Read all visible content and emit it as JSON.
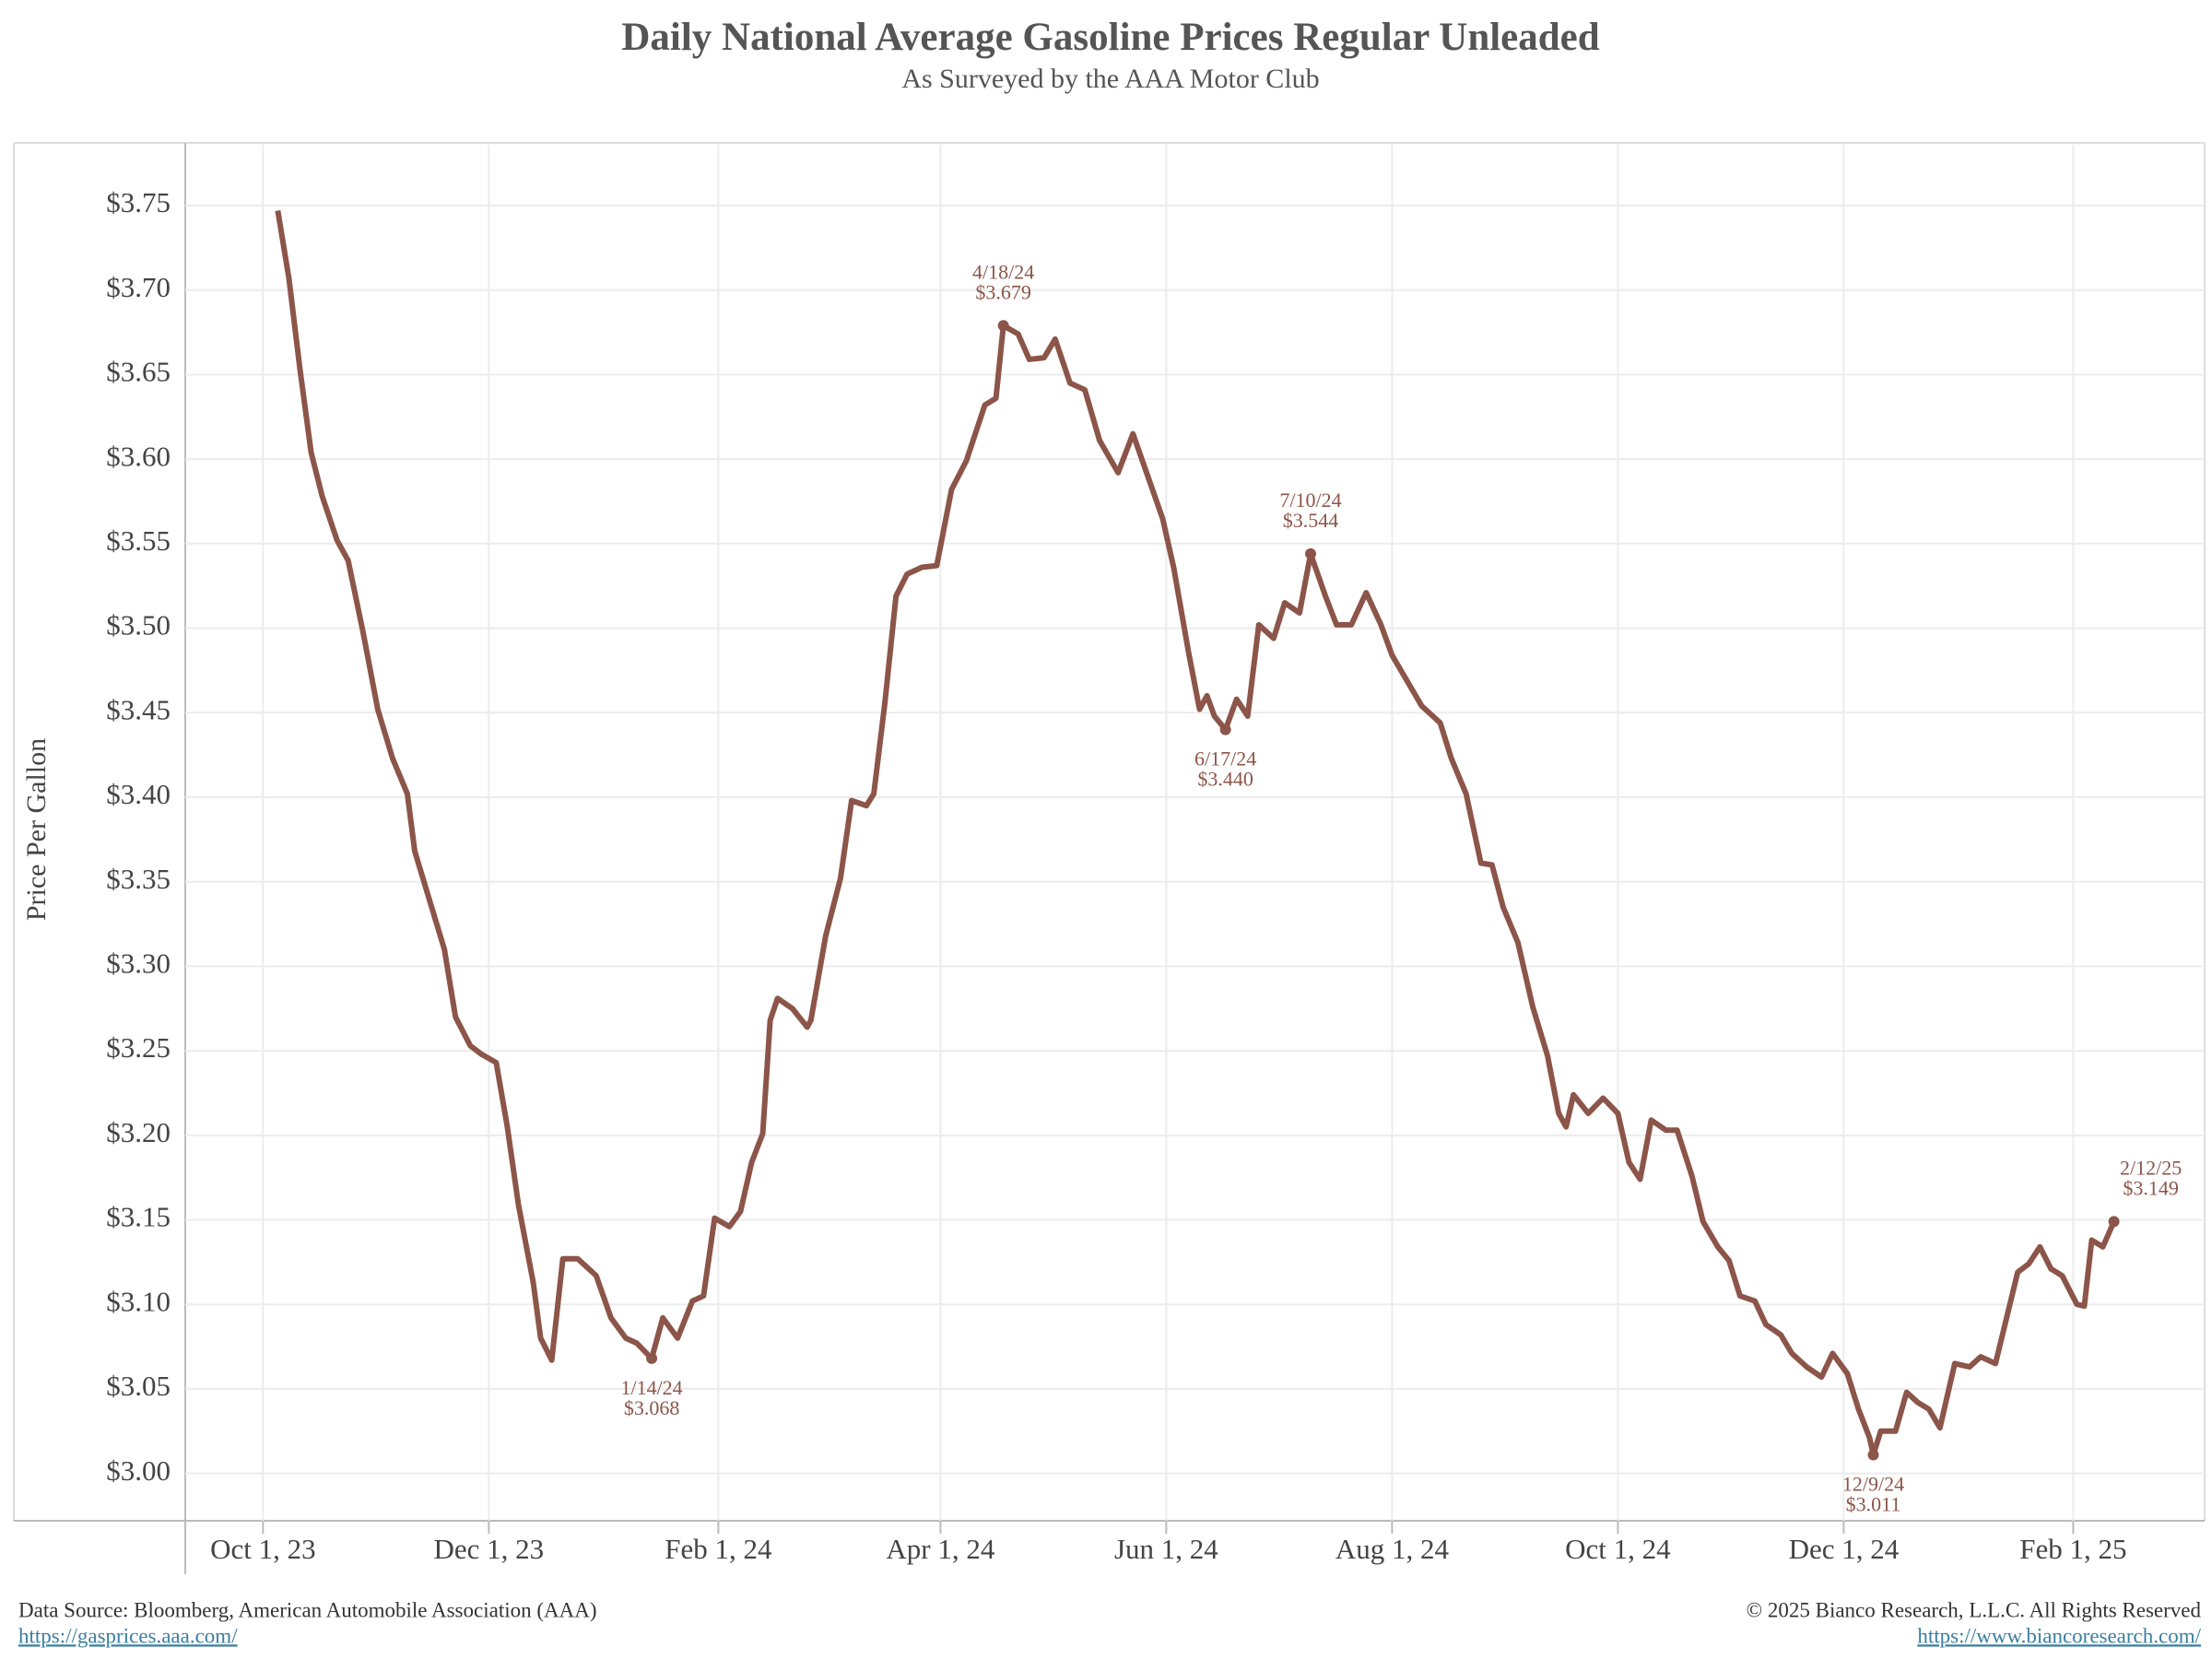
{
  "chart_data": {
    "type": "line",
    "title": "Daily National Average Gasoline Prices Regular Unleaded",
    "subtitle": "As Surveyed by the AAA Motor Club",
    "y_label": "Price Per Gallon",
    "source": "Data Source: Bloomberg, American Automobile Association (AAA)",
    "source_link": "https://gasprices.aaa.com/",
    "copyright": "© 2025 Bianco Research, L.L.C. All Rights Reserved",
    "copyright_link": "https://www.biancoresearch.com/",
    "grid": true,
    "xlim": [
      "2023-09-10",
      "2025-03-08"
    ],
    "xticks": [
      {
        "value": "2023-10-01",
        "label": "Oct 1, 23"
      },
      {
        "value": "2023-12-01",
        "label": "Dec 1, 23"
      },
      {
        "value": "2024-02-01",
        "label": "Feb 1, 24"
      },
      {
        "value": "2024-04-01",
        "label": "Apr 1, 24"
      },
      {
        "value": "2024-06-01",
        "label": "Jun 1, 24"
      },
      {
        "value": "2024-08-01",
        "label": "Aug 1, 24"
      },
      {
        "value": "2024-10-01",
        "label": "Oct 1, 24"
      },
      {
        "value": "2024-12-01",
        "label": "Dec 1, 24"
      },
      {
        "value": "2025-02-01",
        "label": "Feb 1, 25"
      }
    ],
    "ylim": [
      2.972,
      3.786
    ],
    "yticks": [
      {
        "value": 3.0,
        "label": "$3.00"
      },
      {
        "value": 3.05,
        "label": "$3.05"
      },
      {
        "value": 3.1,
        "label": "$3.10"
      },
      {
        "value": 3.15,
        "label": "$3.15"
      },
      {
        "value": 3.2,
        "label": "$3.20"
      },
      {
        "value": 3.25,
        "label": "$3.25"
      },
      {
        "value": 3.3,
        "label": "$3.30"
      },
      {
        "value": 3.35,
        "label": "$3.35"
      },
      {
        "value": 3.4,
        "label": "$3.40"
      },
      {
        "value": 3.45,
        "label": "$3.45"
      },
      {
        "value": 3.5,
        "label": "$3.50"
      },
      {
        "value": 3.55,
        "label": "$3.55"
      },
      {
        "value": 3.6,
        "label": "$3.60"
      },
      {
        "value": 3.65,
        "label": "$3.65"
      },
      {
        "value": 3.7,
        "label": "$3.70"
      },
      {
        "value": 3.75,
        "label": "$3.75"
      }
    ],
    "x": [
      "2023-10-05",
      "2023-10-08",
      "2023-10-11",
      "2023-10-14",
      "2023-10-17",
      "2023-10-21",
      "2023-10-24",
      "2023-10-28",
      "2023-11-01",
      "2023-11-05",
      "2023-11-09",
      "2023-11-11",
      "2023-11-15",
      "2023-11-19",
      "2023-11-22",
      "2023-11-26",
      "2023-11-29",
      "2023-12-03",
      "2023-12-06",
      "2023-12-09",
      "2023-12-13",
      "2023-12-15",
      "2023-12-18",
      "2023-12-21",
      "2023-12-25",
      "2023-12-30",
      "2024-01-03",
      "2024-01-07",
      "2024-01-10",
      "2024-01-14",
      "2024-01-17",
      "2024-01-21",
      "2024-01-25",
      "2024-01-28",
      "2024-01-31",
      "2024-02-04",
      "2024-02-07",
      "2024-02-10",
      "2024-02-13",
      "2024-02-15",
      "2024-02-17",
      "2024-02-21",
      "2024-02-25",
      "2024-02-26",
      "2024-03-01",
      "2024-03-05",
      "2024-03-08",
      "2024-03-12",
      "2024-03-14",
      "2024-03-17",
      "2024-03-20",
      "2024-03-23",
      "2024-03-27",
      "2024-03-31",
      "2024-04-04",
      "2024-04-08",
      "2024-04-13",
      "2024-04-16",
      "2024-04-18",
      "2024-04-22",
      "2024-04-25",
      "2024-04-29",
      "2024-05-02",
      "2024-05-06",
      "2024-05-10",
      "2024-05-14",
      "2024-05-19",
      "2024-05-23",
      "2024-05-27",
      "2024-05-31",
      "2024-06-03",
      "2024-06-07",
      "2024-06-10",
      "2024-06-12",
      "2024-06-14",
      "2024-06-17",
      "2024-06-20",
      "2024-06-23",
      "2024-06-26",
      "2024-06-30",
      "2024-07-03",
      "2024-07-07",
      "2024-07-10",
      "2024-07-14",
      "2024-07-17",
      "2024-07-21",
      "2024-07-25",
      "2024-07-29",
      "2024-08-01",
      "2024-08-05",
      "2024-08-09",
      "2024-08-14",
      "2024-08-17",
      "2024-08-21",
      "2024-08-25",
      "2024-08-28",
      "2024-08-31",
      "2024-09-04",
      "2024-09-08",
      "2024-09-12",
      "2024-09-15",
      "2024-09-17",
      "2024-09-19",
      "2024-09-23",
      "2024-09-27",
      "2024-10-01",
      "2024-10-04",
      "2024-10-07",
      "2024-10-10",
      "2024-10-14",
      "2024-10-17",
      "2024-10-21",
      "2024-10-24",
      "2024-10-28",
      "2024-10-31",
      "2024-11-03",
      "2024-11-07",
      "2024-11-10",
      "2024-11-14",
      "2024-11-17",
      "2024-11-21",
      "2024-11-25",
      "2024-11-28",
      "2024-12-02",
      "2024-12-05",
      "2024-12-08",
      "2024-12-09",
      "2024-12-11",
      "2024-12-15",
      "2024-12-18",
      "2024-12-21",
      "2024-12-24",
      "2024-12-27",
      "2024-12-31",
      "2025-01-04",
      "2025-01-07",
      "2025-01-11",
      "2025-01-14",
      "2025-01-17",
      "2025-01-20",
      "2025-01-23",
      "2025-01-26",
      "2025-01-29",
      "2025-02-02",
      "2025-02-04",
      "2025-02-06",
      "2025-02-09",
      "2025-02-12"
    ],
    "series": [
      {
        "color": "#8c5549",
        "values": [
          3.747,
          3.707,
          3.653,
          3.604,
          3.578,
          3.552,
          3.54,
          3.498,
          3.452,
          3.423,
          3.402,
          3.368,
          3.339,
          3.31,
          3.27,
          3.253,
          3.248,
          3.243,
          3.205,
          3.159,
          3.113,
          3.08,
          3.067,
          3.127,
          3.127,
          3.117,
          3.092,
          3.08,
          3.077,
          3.068,
          3.092,
          3.08,
          3.102,
          3.105,
          3.151,
          3.146,
          3.155,
          3.184,
          3.201,
          3.268,
          3.281,
          3.275,
          3.264,
          3.268,
          3.318,
          3.352,
          3.398,
          3.395,
          3.402,
          3.456,
          3.519,
          3.532,
          3.536,
          3.537,
          3.582,
          3.599,
          3.632,
          3.636,
          3.679,
          3.674,
          3.659,
          3.66,
          3.671,
          3.645,
          3.641,
          3.611,
          3.592,
          3.615,
          3.59,
          3.565,
          3.536,
          3.486,
          3.452,
          3.46,
          3.448,
          3.44,
          3.458,
          3.448,
          3.502,
          3.494,
          3.515,
          3.509,
          3.544,
          3.519,
          3.502,
          3.502,
          3.521,
          3.502,
          3.484,
          3.469,
          3.454,
          3.444,
          3.423,
          3.402,
          3.361,
          3.36,
          3.335,
          3.314,
          3.276,
          3.247,
          3.213,
          3.205,
          3.224,
          3.213,
          3.222,
          3.213,
          3.184,
          3.174,
          3.209,
          3.203,
          3.203,
          3.176,
          3.149,
          3.134,
          3.126,
          3.105,
          3.102,
          3.088,
          3.082,
          3.071,
          3.063,
          3.057,
          3.071,
          3.059,
          3.038,
          3.021,
          3.011,
          3.025,
          3.025,
          3.048,
          3.042,
          3.038,
          3.027,
          3.065,
          3.063,
          3.069,
          3.065,
          3.092,
          3.119,
          3.124,
          3.134,
          3.121,
          3.117,
          3.1,
          3.099,
          3.138,
          3.134,
          3.149
        ]
      }
    ],
    "annotations": [
      {
        "x": "2024-01-14",
        "y": 3.068,
        "label": "1/14/24",
        "value_label": "$3.068",
        "position": "below"
      },
      {
        "x": "2024-04-18",
        "y": 3.679,
        "label": "4/18/24",
        "value_label": "$3.679",
        "position": "above"
      },
      {
        "x": "2024-06-17",
        "y": 3.44,
        "label": "6/17/24",
        "value_label": "$3.440",
        "position": "below"
      },
      {
        "x": "2024-07-10",
        "y": 3.544,
        "label": "7/10/24",
        "value_label": "$3.544",
        "position": "above"
      },
      {
        "x": "2024-12-09",
        "y": 3.011,
        "label": "12/9/24",
        "value_label": "$3.011",
        "position": "below"
      },
      {
        "x": "2025-02-12",
        "y": 3.149,
        "label": "2/12/25",
        "value_label": "$3.149",
        "position": "above-right"
      }
    ]
  }
}
